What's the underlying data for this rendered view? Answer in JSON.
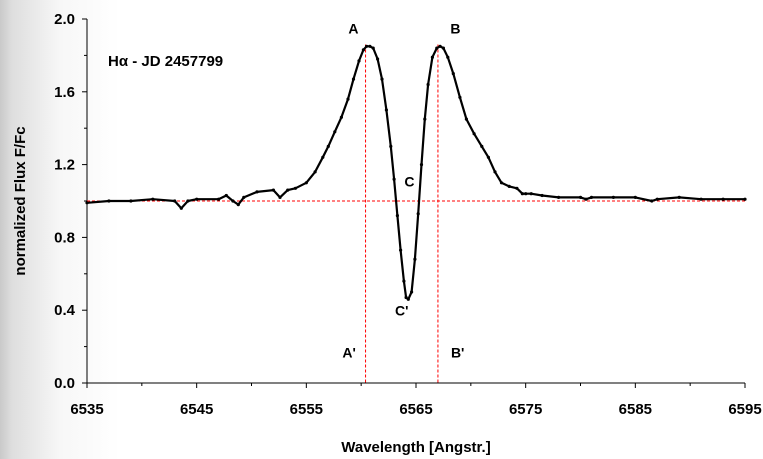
{
  "chart_data": {
    "type": "line",
    "title": "Hα - JD 2457799",
    "xlabel": "Wavelength [Angstr.]",
    "ylabel": "normalized Flux F/Fc",
    "xlim": [
      6535,
      6595
    ],
    "ylim": [
      0.0,
      2.0
    ],
    "xticks": [
      "6535",
      "6545",
      "6555",
      "6565",
      "6575",
      "6585",
      "6595"
    ],
    "yticks": [
      "0.0",
      "0.4",
      "0.8",
      "1.2",
      "1.6",
      "2.0"
    ],
    "grid": false,
    "colors": {
      "line": "#000000",
      "guides": "#ff0000"
    },
    "series": [
      {
        "x": [
          6535.0,
          6537.0,
          6539.0,
          6541.0,
          6543.0,
          6543.6,
          6544.2,
          6545.0,
          6547.0,
          6547.7,
          6548.3,
          6548.8,
          6549.3,
          6550.5,
          6552.0,
          6552.6,
          6553.3,
          6554.0,
          6555.0,
          6555.8,
          6556.5,
          6557.0,
          6557.6,
          6558.2,
          6558.8,
          6559.3,
          6559.8,
          6560.2,
          6560.5,
          6560.8,
          6561.1,
          6561.5,
          6561.9,
          6562.3,
          6562.7,
          6563.0,
          6563.3,
          6563.6,
          6563.9,
          6564.1,
          6564.3,
          6564.6,
          6564.9,
          6565.2,
          6565.5,
          6565.8,
          6566.1,
          6566.5,
          6566.9,
          6567.2,
          6567.5,
          6567.9,
          6568.4,
          6569.0,
          6569.6,
          6570.3,
          6571.0,
          6571.6,
          6572.2,
          6572.8,
          6573.5,
          6574.2,
          6574.7,
          6575.0,
          6575.5,
          6576.5,
          6578.0,
          6580.0,
          6580.5,
          6581.0,
          6583.0,
          6585.0,
          6586.5,
          6587.0,
          6589.0,
          6591.0,
          6593.0,
          6595.0
        ],
        "y": [
          0.99,
          1.0,
          1.0,
          1.01,
          1.0,
          0.96,
          1.0,
          1.01,
          1.01,
          1.03,
          1.0,
          0.98,
          1.02,
          1.05,
          1.06,
          1.02,
          1.06,
          1.07,
          1.1,
          1.16,
          1.24,
          1.3,
          1.38,
          1.46,
          1.56,
          1.67,
          1.77,
          1.83,
          1.85,
          1.85,
          1.84,
          1.78,
          1.67,
          1.5,
          1.3,
          1.12,
          0.92,
          0.73,
          0.56,
          0.47,
          0.46,
          0.5,
          0.68,
          0.93,
          1.2,
          1.45,
          1.64,
          1.79,
          1.84,
          1.85,
          1.84,
          1.79,
          1.7,
          1.57,
          1.45,
          1.37,
          1.3,
          1.24,
          1.16,
          1.1,
          1.08,
          1.07,
          1.04,
          1.04,
          1.04,
          1.03,
          1.02,
          1.02,
          1.01,
          1.02,
          1.02,
          1.02,
          1.0,
          1.01,
          1.02,
          1.01,
          1.01,
          1.01
        ]
      }
    ],
    "reference_lines": {
      "horizontal_y": 1.0,
      "vertical_x": [
        6560.4,
        6567.0
      ]
    },
    "annotations": [
      {
        "text": "A",
        "x": 6559.3,
        "y": 1.92
      },
      {
        "text": "B",
        "x": 6568.6,
        "y": 1.92
      },
      {
        "text": "C",
        "x": 6564.4,
        "y": 1.08
      },
      {
        "text": "C'",
        "x": 6563.7,
        "y": 0.37
      },
      {
        "text": "A'",
        "x": 6558.9,
        "y": 0.14
      },
      {
        "text": "B'",
        "x": 6568.8,
        "y": 0.14
      }
    ]
  }
}
